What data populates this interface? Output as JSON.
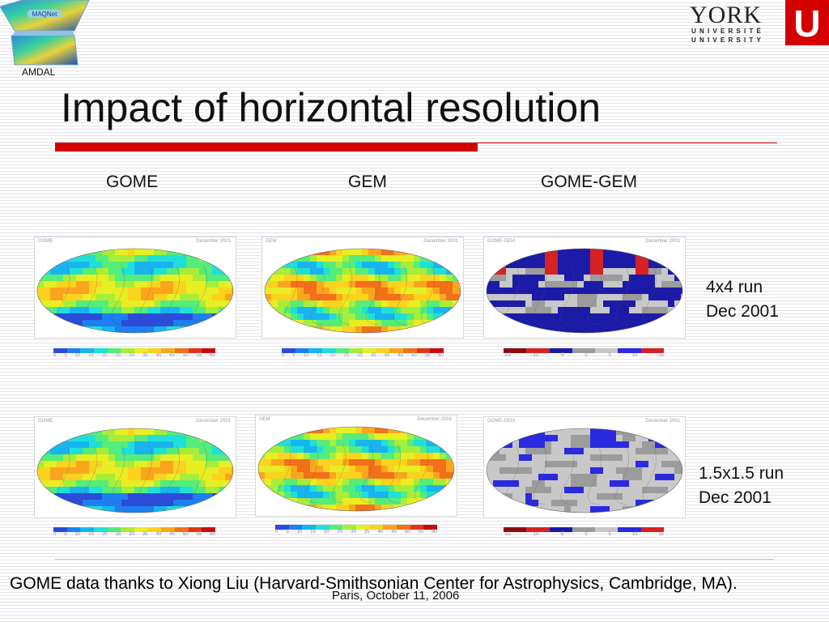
{
  "logos": {
    "top_left_caption": "AMDAL",
    "top_left_emblem_text": "MAQNet",
    "york_word": "YORK",
    "york_fr": "UNIVERSITÉ",
    "york_en": "UNIVERSITY",
    "york_letter": "U"
  },
  "title": "Impact of horizontal resolution",
  "columns": [
    "GOME",
    "GEM",
    "GOME-GEM"
  ],
  "rows": [
    {
      "label_1": "4x4 run",
      "label_2": "Dec 2001"
    },
    {
      "label_1": "1.5x1.5 run",
      "label_2": "Dec 2001"
    }
  ],
  "map_captions": {
    "gome": "GOME",
    "gem": "GEM",
    "diff": "GOME-GEM",
    "date": "December 2001"
  },
  "colorbar_ticks": {
    "abs": [
      "0",
      "5",
      "10",
      "15",
      "20",
      "25",
      "30",
      "35",
      "40",
      "45",
      "50",
      "55",
      "60"
    ],
    "diff": [
      "-15",
      "-10",
      "-5",
      "0",
      "5",
      "10",
      "15"
    ]
  },
  "colors": {
    "accent_red": "#d40000",
    "abs_scale": [
      "#2b4bd8",
      "#1e7ff0",
      "#18b4f0",
      "#1ee0d8",
      "#54ec7a",
      "#a6ee3a",
      "#e8ee24",
      "#fbd21e",
      "#f9a61e",
      "#f2701a",
      "#e23414",
      "#c80c0c"
    ],
    "diff_scale": [
      "#8a0c0c",
      "#d62222",
      "#1b1ba8",
      "#9c9c9c",
      "#c8c8c8",
      "#2a2ae0",
      "#d62222"
    ]
  },
  "footer": {
    "credit": "GOME data thanks to Xiong Liu (Harvard-Smithsonian Center for Astrophysics, Cambridge, MA).",
    "date": "Paris, October 11, 2006"
  }
}
